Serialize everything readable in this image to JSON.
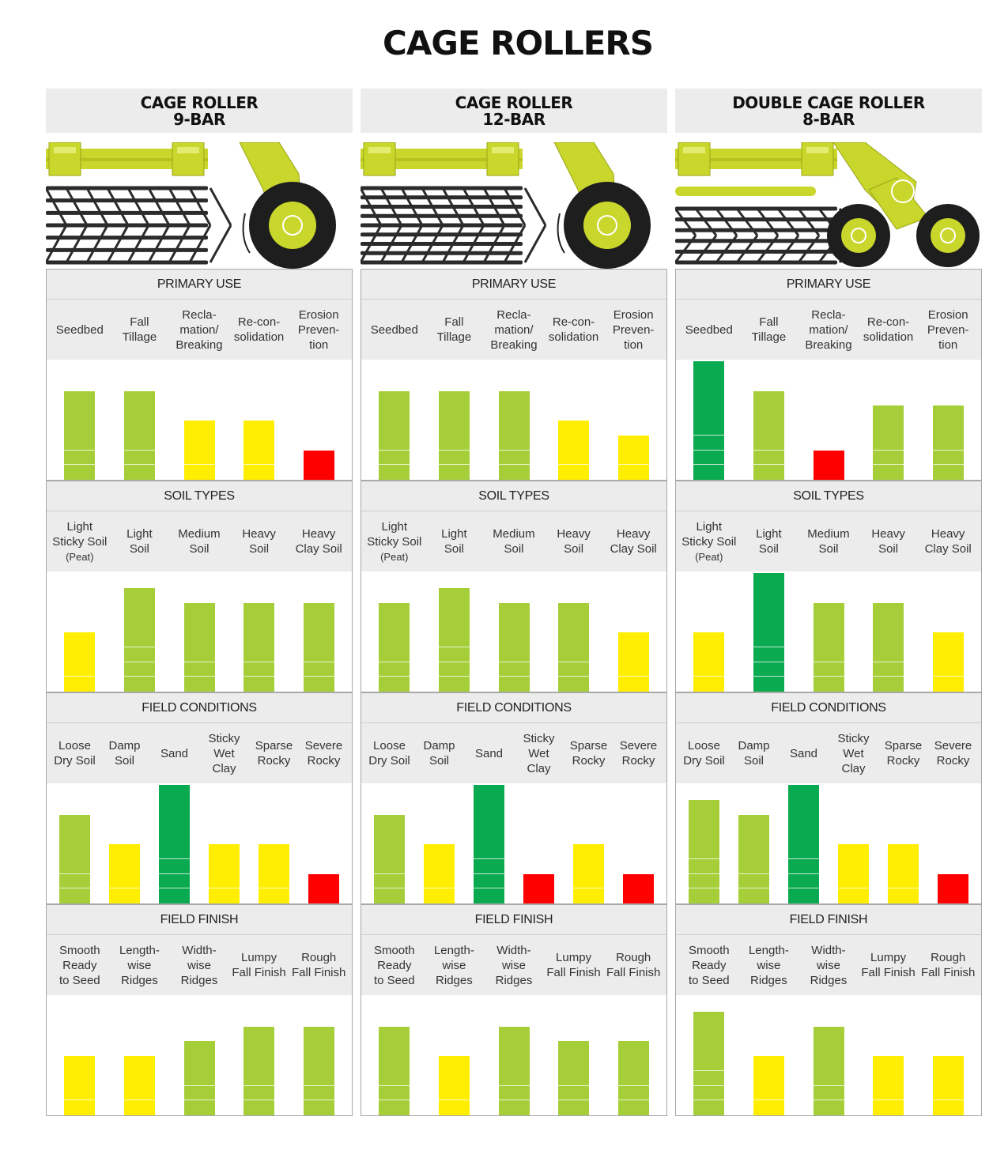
{
  "page_title": "CAGE ROLLERS",
  "colors": {
    "level1": "#ff0000",
    "level2": "#ffee00",
    "level3": "#a6ce39",
    "level4": "#0aaa50",
    "frame": "#c9d62b",
    "cage": "#2b2b2b",
    "wheel": "#1e1e1e"
  },
  "columns": [
    {
      "title_line1": "CAGE ROLLER",
      "title_line2": "9-BAR",
      "illustration": "cage-roller-9-bar"
    },
    {
      "title_line1": "CAGE ROLLER",
      "title_line2": "12-BAR",
      "illustration": "cage-roller-12-bar"
    },
    {
      "title_line1": "DOUBLE CAGE ROLLER",
      "title_line2": "8-BAR",
      "illustration": "double-cage-roller-8-bar"
    }
  ],
  "chart_data": [
    {
      "type": "bar",
      "product": "CAGE ROLLER 9-BAR",
      "title": "PRIMARY USE",
      "categories": [
        "Seedbed",
        "Fall Tillage",
        "Recla-mation/ Breaking",
        "Re-con-solidation",
        "Erosion Preven-tion"
      ],
      "values": [
        3,
        3,
        2,
        2,
        1
      ],
      "ylim": [
        0,
        4
      ]
    },
    {
      "type": "bar",
      "product": "CAGE ROLLER 12-BAR",
      "title": "PRIMARY USE",
      "categories": [
        "Seedbed",
        "Fall Tillage",
        "Recla-mation/ Breaking",
        "Re-con-solidation",
        "Erosion Preven-tion"
      ],
      "values": [
        3,
        3,
        3,
        2,
        1.5
      ],
      "ylim": [
        0,
        4
      ]
    },
    {
      "type": "bar",
      "product": "DOUBLE CAGE ROLLER 8-BAR",
      "title": "PRIMARY USE",
      "categories": [
        "Seedbed",
        "Fall Tillage",
        "Recla-mation/ Breaking",
        "Re-con-solidation",
        "Erosion Preven-tion"
      ],
      "values": [
        4,
        3,
        1,
        2.5,
        2.5
      ],
      "ylim": [
        0,
        4
      ]
    },
    {
      "type": "bar",
      "product": "CAGE ROLLER 9-BAR",
      "title": "SOIL TYPES",
      "categories": [
        "Light Sticky Soil (Peat)",
        "Light Soil",
        "Medium Soil",
        "Heavy Soil",
        "Heavy Clay Soil"
      ],
      "values": [
        2,
        3.5,
        3,
        3,
        3
      ],
      "ylim": [
        0,
        4
      ]
    },
    {
      "type": "bar",
      "product": "CAGE ROLLER 12-BAR",
      "title": "SOIL TYPES",
      "categories": [
        "Light Sticky Soil (Peat)",
        "Light Soil",
        "Medium Soil",
        "Heavy Soil",
        "Heavy Clay Soil"
      ],
      "values": [
        3,
        3.5,
        3,
        3,
        2
      ],
      "ylim": [
        0,
        4
      ]
    },
    {
      "type": "bar",
      "product": "DOUBLE CAGE ROLLER 8-BAR",
      "title": "SOIL TYPES",
      "categories": [
        "Light Sticky Soil (Peat)",
        "Light Soil",
        "Medium Soil",
        "Heavy Soil",
        "Heavy Clay Soil"
      ],
      "values": [
        2,
        4,
        3,
        3,
        2
      ],
      "ylim": [
        0,
        4
      ]
    },
    {
      "type": "bar",
      "product": "CAGE ROLLER 9-BAR",
      "title": "FIELD CONDITIONS",
      "categories": [
        "Loose Dry Soil",
        "Damp Soil",
        "Sand",
        "Sticky Wet Clay",
        "Sparse Rocky",
        "Severe Rocky"
      ],
      "values": [
        3,
        2,
        4,
        2,
        2,
        1
      ],
      "ylim": [
        0,
        4
      ]
    },
    {
      "type": "bar",
      "product": "CAGE ROLLER 12-BAR",
      "title": "FIELD CONDITIONS",
      "categories": [
        "Loose Dry Soil",
        "Damp Soil",
        "Sand",
        "Sticky Wet Clay",
        "Sparse Rocky",
        "Severe Rocky"
      ],
      "values": [
        3,
        2,
        4,
        1,
        2,
        1
      ],
      "ylim": [
        0,
        4
      ]
    },
    {
      "type": "bar",
      "product": "DOUBLE CAGE ROLLER 8-BAR",
      "title": "FIELD CONDITIONS",
      "categories": [
        "Loose Dry Soil",
        "Damp Soil",
        "Sand",
        "Sticky Wet Clay",
        "Sparse Rocky",
        "Severe Rocky"
      ],
      "values": [
        3.5,
        3,
        4,
        2,
        2,
        1
      ],
      "ylim": [
        0,
        4
      ]
    },
    {
      "type": "bar",
      "product": "CAGE ROLLER 9-BAR",
      "title": "FIELD FINISH",
      "categories": [
        "Smooth Ready to Seed",
        "Length-wise Ridges",
        "Width-wise Ridges",
        "Lumpy Fall Finish",
        "Rough Fall Finish"
      ],
      "values": [
        2,
        2,
        2.5,
        3,
        3
      ],
      "ylim": [
        0,
        4
      ]
    },
    {
      "type": "bar",
      "product": "CAGE ROLLER 12-BAR",
      "title": "FIELD FINISH",
      "categories": [
        "Smooth Ready to Seed",
        "Length-wise Ridges",
        "Width-wise Ridges",
        "Lumpy Fall Finish",
        "Rough Fall Finish"
      ],
      "values": [
        3,
        2,
        3,
        2.5,
        2.5
      ],
      "ylim": [
        0,
        4
      ]
    },
    {
      "type": "bar",
      "product": "DOUBLE CAGE ROLLER 8-BAR",
      "title": "FIELD FINISH",
      "categories": [
        "Smooth Ready to Seed",
        "Length-wise Ridges",
        "Width-wise Ridges",
        "Lumpy Fall Finish",
        "Rough Fall Finish"
      ],
      "values": [
        3.5,
        2,
        3,
        2,
        2
      ],
      "ylim": [
        0,
        4
      ]
    }
  ],
  "label_lines": {
    "PRIMARY USE": [
      [
        "Seedbed"
      ],
      [
        "Fall",
        "Tillage"
      ],
      [
        "Recla-",
        "mation/",
        "Breaking"
      ],
      [
        "Re-con-",
        "solidation"
      ],
      [
        "Erosion",
        "Preven-",
        "tion"
      ]
    ],
    "SOIL TYPES": [
      [
        "Light",
        "Sticky Soil",
        "(Peat)"
      ],
      [
        "Light",
        "Soil"
      ],
      [
        "Medium",
        "Soil"
      ],
      [
        "Heavy",
        "Soil"
      ],
      [
        "Heavy",
        "Clay Soil"
      ]
    ],
    "FIELD CONDITIONS": [
      [
        "Loose",
        "Dry Soil"
      ],
      [
        "Damp",
        "Soil"
      ],
      [
        "Sand"
      ],
      [
        "Sticky",
        "Wet",
        "Clay"
      ],
      [
        "Sparse",
        "Rocky"
      ],
      [
        "Severe",
        "Rocky"
      ]
    ],
    "FIELD FINISH": [
      [
        "Smooth",
        "Ready",
        "to Seed"
      ],
      [
        "Length-",
        "wise",
        "Ridges"
      ],
      [
        "Width-",
        "wise",
        "Ridges"
      ],
      [
        "Lumpy",
        "Fall Finish"
      ],
      [
        "Rough",
        "Fall Finish"
      ]
    ]
  }
}
